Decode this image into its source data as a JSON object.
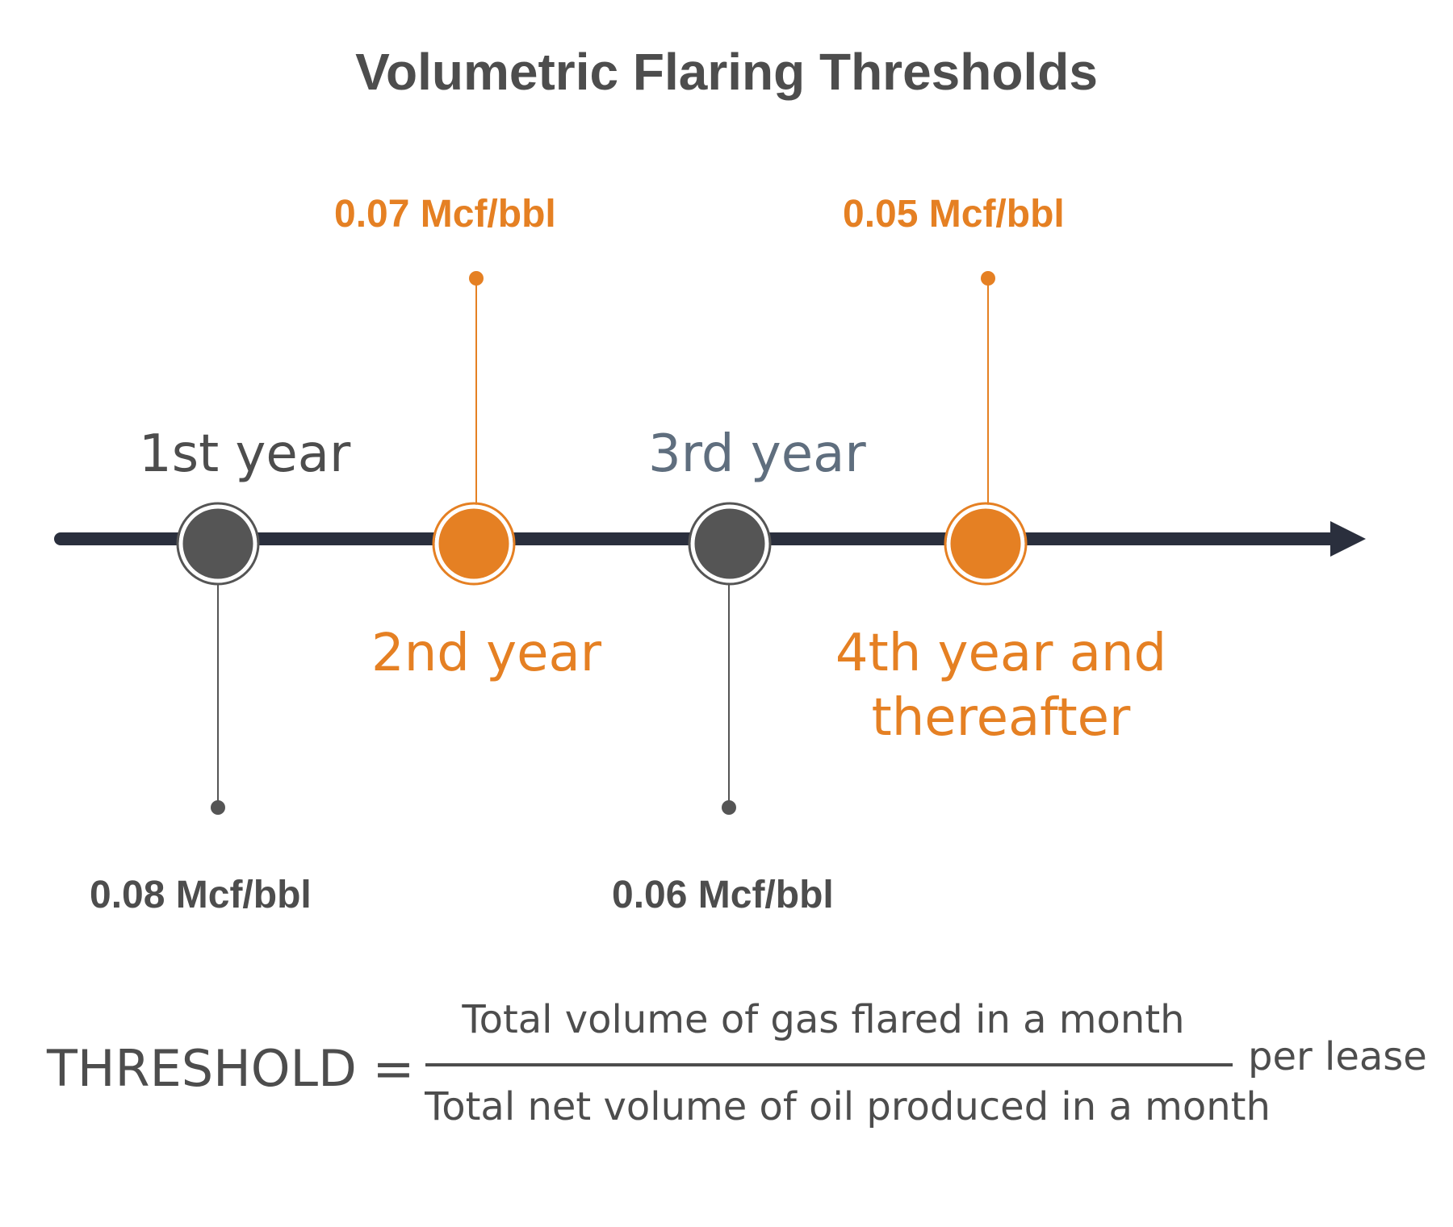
{
  "title": "Volumetric Flaring Thresholds",
  "colors": {
    "orange": "#e58023",
    "dark_gray": "#555555",
    "axis": "#2a2f3d",
    "slate": "#5f6e7e"
  },
  "milestones": [
    {
      "period": "1st year",
      "rate": "0.08 Mcf/bbl",
      "color": "dark_gray"
    },
    {
      "period": "2nd year",
      "rate": "0.07 Mcf/bbl",
      "color": "orange"
    },
    {
      "period": "3rd year",
      "rate": "0.06 Mcf/bbl",
      "color": "dark_gray"
    },
    {
      "period_line1": "4th year and",
      "period_line2": "thereafter",
      "rate": "0.05 Mcf/bbl",
      "color": "orange"
    }
  ],
  "formula": {
    "lhs": "THRESHOLD =",
    "numerator": "Total volume of gas flared in a month",
    "denominator": "Total net volume of oil produced in a month",
    "suffix": "per lease"
  }
}
